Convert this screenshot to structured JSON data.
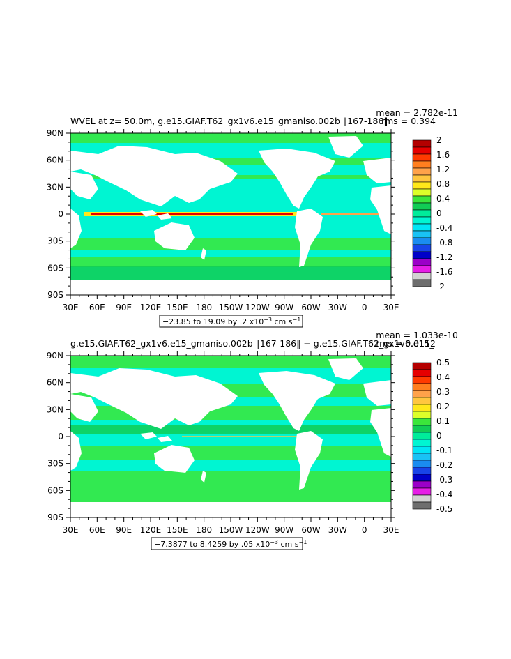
{
  "chart_data": [
    {
      "type": "heatmap",
      "title": "WVEL at z=  50.0m, g.e15.GIAF.T62_gx1v6.e15_gmaniso.002b ‖167-186‖",
      "stats": {
        "mean": "mean = 2.782e-11",
        "rms": "rms = 0.394"
      },
      "x_ticks": [
        "30E",
        "60E",
        "90E",
        "120E",
        "150E",
        "180",
        "150W",
        "120W",
        "90W",
        "60W",
        "30W",
        "0",
        "30E"
      ],
      "y_ticks": [
        "90N",
        "60N",
        "30N",
        "0",
        "30S",
        "60S",
        "90S"
      ],
      "xlim": [
        30,
        390
      ],
      "ylim": [
        -90,
        90
      ],
      "colorbar": {
        "labels": [
          "2",
          "1.6",
          "1.2",
          "0.8",
          "0.4",
          "0",
          "-0.4",
          "-0.8",
          "-1.2",
          "-1.6",
          "-2"
        ],
        "colors": [
          "#b40000",
          "#e60000",
          "#ff3a00",
          "#ff7f1f",
          "#ffa24a",
          "#ffc63f",
          "#ffe81a",
          "#dcff2a",
          "#3be63b",
          "#11cc55",
          "#00ec9a",
          "#00f5d2",
          "#00e5f5",
          "#19c2f5",
          "#1a8cf0",
          "#1844e8",
          "#0000c8",
          "#9b00c8",
          "#e61ee6",
          "#d2d2d2",
          "#6e6e6e"
        ],
        "top_label": "2",
        "bottom_label": "-2"
      },
      "range_note": {
        "main": "−23.85 to 19.09 by .2 x10",
        "exp": "−3",
        "unit": " cm s",
        "unit_exp": "−1"
      }
    },
    {
      "type": "heatmap",
      "title": "g.e15.GIAF.T62_gx1v6.e15_gmaniso.002b ‖167-186‖ − g.e15.GIAF.T62_gx1v6.e15_",
      "stats": {
        "mean": "mean = 1.033e-10",
        "rms": "rms = 0.0112"
      },
      "x_ticks": [
        "30E",
        "60E",
        "90E",
        "120E",
        "150E",
        "180",
        "150W",
        "120W",
        "90W",
        "60W",
        "30W",
        "0",
        "30E"
      ],
      "y_ticks": [
        "90N",
        "60N",
        "30N",
        "0",
        "30S",
        "60S",
        "90S"
      ],
      "xlim": [
        30,
        390
      ],
      "ylim": [
        -90,
        90
      ],
      "colorbar": {
        "labels": [
          "0.5",
          "0.4",
          "0.3",
          "0.2",
          "0.1",
          "0",
          "-0.1",
          "-0.2",
          "-0.3",
          "-0.4",
          "-0.5"
        ],
        "colors": [
          "#b40000",
          "#e60000",
          "#ff3a00",
          "#ff7f1f",
          "#ffa24a",
          "#ffc63f",
          "#ffe81a",
          "#dcff2a",
          "#3be63b",
          "#11cc55",
          "#00ec9a",
          "#00f5d2",
          "#00e5f5",
          "#19c2f5",
          "#1a8cf0",
          "#1844e8",
          "#0000c8",
          "#9b00c8",
          "#e61ee6",
          "#d2d2d2",
          "#6e6e6e"
        ],
        "top_label": "0.5",
        "bottom_label": "-0.5"
      },
      "range_note": {
        "main": "−7.3877 to 8.4259 by .05 x10",
        "exp": "−3",
        "unit": " cm s",
        "unit_exp": "−1"
      }
    }
  ]
}
